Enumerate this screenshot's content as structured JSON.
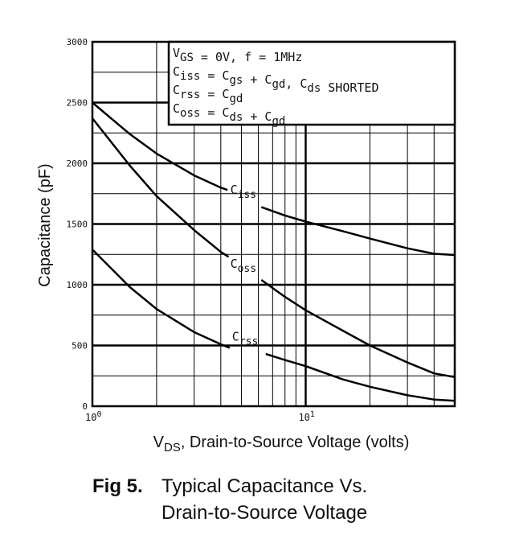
{
  "chart_data": {
    "type": "line",
    "xscale": "log",
    "xlim": [
      1,
      50
    ],
    "ylim": [
      0,
      3000
    ],
    "yticks": [
      0,
      500,
      1000,
      1500,
      2000,
      2500,
      3000
    ],
    "ytick_labels": [
      "0",
      "500",
      "1000",
      "1500",
      "2000",
      "2500",
      "3000"
    ],
    "xtick_labels": [
      {
        "x": 1,
        "base": "10",
        "exp": "0"
      },
      {
        "x": 10,
        "base": "10",
        "exp": "1"
      }
    ],
    "grid": true,
    "ylabel": "Capacitance (pF)",
    "xlabel": {
      "prefix": "V",
      "sub": "DS",
      "suffix": ", Drain-to-Source Voltage (volts)"
    },
    "legend": {
      "position": "top-right",
      "lines": [
        [
          {
            "t": "V"
          },
          {
            "t": "GS",
            "sub": true
          },
          {
            "t": " = 0V,  f = 1MHz"
          }
        ],
        [
          {
            "t": "C"
          },
          {
            "t": "iss",
            "sub": true
          },
          {
            "t": " = C"
          },
          {
            "t": "gs",
            "sub": true
          },
          {
            "t": " + C"
          },
          {
            "t": "gd",
            "sub": true
          },
          {
            "t": ",  C"
          },
          {
            "t": "ds",
            "sub": true
          },
          {
            "t": " SHORTED"
          }
        ],
        [
          {
            "t": "C"
          },
          {
            "t": "rss",
            "sub": true
          },
          {
            "t": " = C"
          },
          {
            "t": "gd",
            "sub": true
          }
        ],
        [
          {
            "t": "C"
          },
          {
            "t": "oss",
            "sub": true
          },
          {
            "t": " = C"
          },
          {
            "t": "ds",
            "sub": true
          },
          {
            "t": " + C"
          },
          {
            "t": "gd",
            "sub": true
          }
        ]
      ]
    },
    "series": [
      {
        "name": "Ciss",
        "label_main": "C",
        "label_sub": "iss",
        "label_at": [
          5.1,
          1750
        ],
        "points": [
          [
            1,
            2500
          ],
          [
            1.5,
            2240
          ],
          [
            2,
            2080
          ],
          [
            3,
            1900
          ],
          [
            4,
            1800
          ],
          [
            4.3,
            1780
          ],
          [
            6.2,
            1640
          ],
          [
            8,
            1570
          ],
          [
            10,
            1520
          ],
          [
            15,
            1440
          ],
          [
            20,
            1380
          ],
          [
            30,
            1300
          ],
          [
            40,
            1255
          ],
          [
            50,
            1245
          ]
        ],
        "gap": [
          4.3,
          6.2
        ]
      },
      {
        "name": "Coss",
        "label_main": "C",
        "label_sub": "oss",
        "label_at": [
          5.1,
          1140
        ],
        "points": [
          [
            1,
            2370
          ],
          [
            1.5,
            1980
          ],
          [
            2,
            1730
          ],
          [
            3,
            1450
          ],
          [
            4,
            1270
          ],
          [
            4.35,
            1230
          ],
          [
            6.2,
            1040
          ],
          [
            8,
            900
          ],
          [
            10,
            790
          ],
          [
            15,
            620
          ],
          [
            20,
            500
          ],
          [
            30,
            360
          ],
          [
            40,
            270
          ],
          [
            50,
            240
          ]
        ],
        "gap": [
          4.35,
          6.2
        ]
      },
      {
        "name": "Crss",
        "label_main": "C",
        "label_sub": "rss",
        "label_at": [
          5.2,
          540
        ],
        "points": [
          [
            1,
            1290
          ],
          [
            1.5,
            980
          ],
          [
            2,
            800
          ],
          [
            3,
            610
          ],
          [
            4,
            510
          ],
          [
            4.4,
            480
          ],
          [
            6.5,
            430
          ],
          [
            8,
            380
          ],
          [
            10,
            330
          ],
          [
            15,
            220
          ],
          [
            20,
            160
          ],
          [
            30,
            90
          ],
          [
            40,
            55
          ],
          [
            50,
            45
          ]
        ],
        "gap": [
          4.4,
          6.5
        ]
      }
    ]
  },
  "caption": {
    "number": "Fig 5.",
    "line1": "Typical Capacitance Vs.",
    "line2": "Drain-to-Source Voltage"
  }
}
